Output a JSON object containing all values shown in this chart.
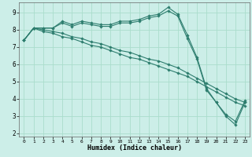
{
  "xlabel": "Humidex (Indice chaleur)",
  "bg_color": "#cceee8",
  "grid_color": "#aaddcc",
  "line_color": "#2d7d6e",
  "xlim": [
    -0.5,
    23.5
  ],
  "ylim": [
    1.8,
    9.6
  ],
  "yticks": [
    2,
    3,
    4,
    5,
    6,
    7,
    8,
    9
  ],
  "xtick_labels": [
    "0",
    "1",
    "2",
    "3",
    "4",
    "5",
    "6",
    "7",
    "8",
    "9",
    "10",
    "11",
    "12",
    "13",
    "14",
    "15",
    "16",
    "17",
    "18",
    "19",
    "20",
    "21",
    "22",
    "23"
  ],
  "series": [
    [
      7.4,
      8.1,
      8.1,
      8.1,
      8.5,
      8.3,
      8.5,
      8.4,
      8.3,
      8.3,
      8.5,
      8.5,
      8.6,
      8.8,
      8.9,
      9.3,
      8.9,
      7.7,
      6.4,
      4.6,
      3.8,
      3.0,
      2.5,
      3.8
    ],
    [
      7.4,
      8.1,
      8.1,
      8.1,
      8.4,
      8.2,
      8.4,
      8.3,
      8.2,
      8.2,
      8.4,
      8.4,
      8.5,
      8.7,
      8.8,
      9.1,
      8.8,
      7.5,
      6.3,
      4.5,
      3.8,
      3.1,
      2.7,
      3.9
    ],
    [
      7.4,
      8.1,
      8.0,
      7.9,
      7.8,
      7.6,
      7.5,
      7.3,
      7.2,
      7.0,
      6.8,
      6.7,
      6.5,
      6.3,
      6.2,
      6.0,
      5.8,
      5.5,
      5.2,
      4.9,
      4.6,
      4.3,
      4.0,
      3.8
    ],
    [
      7.4,
      8.1,
      7.9,
      7.8,
      7.6,
      7.5,
      7.3,
      7.1,
      7.0,
      6.8,
      6.6,
      6.4,
      6.3,
      6.1,
      5.9,
      5.7,
      5.5,
      5.3,
      5.0,
      4.7,
      4.4,
      4.1,
      3.8,
      3.6
    ]
  ]
}
